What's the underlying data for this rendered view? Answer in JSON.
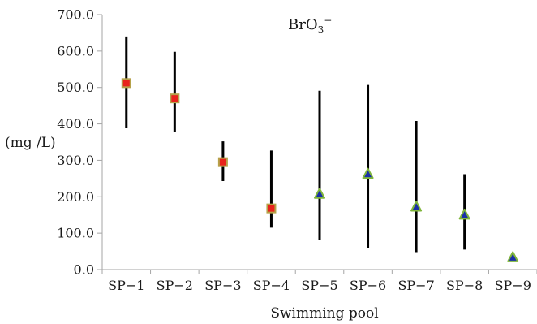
{
  "chart_data": {
    "type": "scatter",
    "title": "BrO3⁻",
    "title_main": "BrO",
    "title_sub": "3",
    "title_sup": "−",
    "xlabel": "Swimming pool",
    "ylabel": "(mg /L)",
    "ylim": [
      0,
      700
    ],
    "yticks": [
      "0.0",
      "100.0",
      "200.0",
      "300.0",
      "400.0",
      "500.0",
      "600.0",
      "700.0"
    ],
    "grid": false,
    "categories": [
      "SP-1",
      "SP-2",
      "SP-3",
      "SP-4",
      "SP-5",
      "SP-6",
      "SP-7",
      "SP-8",
      "SP-9"
    ],
    "points": [
      {
        "category": "SP-1",
        "mean": 512,
        "min": 388,
        "max": 640,
        "marker": "square"
      },
      {
        "category": "SP-2",
        "mean": 470,
        "min": 377,
        "max": 598,
        "marker": "square"
      },
      {
        "category": "SP-3",
        "mean": 295,
        "min": 243,
        "max": 352,
        "marker": "square"
      },
      {
        "category": "SP-4",
        "mean": 168,
        "min": 115,
        "max": 327,
        "marker": "square"
      },
      {
        "category": "SP-5",
        "mean": 207,
        "min": 82,
        "max": 491,
        "marker": "triangle"
      },
      {
        "category": "SP-6",
        "mean": 262,
        "min": 58,
        "max": 507,
        "marker": "triangle"
      },
      {
        "category": "SP-7",
        "mean": 172,
        "min": 48,
        "max": 408,
        "marker": "triangle"
      },
      {
        "category": "SP-8",
        "mean": 150,
        "min": 55,
        "max": 262,
        "marker": "triangle"
      },
      {
        "category": "SP-9",
        "mean": 33,
        "min": null,
        "max": null,
        "marker": "triangle"
      }
    ],
    "colors": {
      "square_fill": "#e8231c",
      "square_stroke": "#b6a24a",
      "triangle_fill": "#1a2fa8",
      "triangle_stroke": "#7fb53a",
      "error_bar": "#000000",
      "axis": "#a6a6a6",
      "text": "#1a1a1a"
    }
  }
}
